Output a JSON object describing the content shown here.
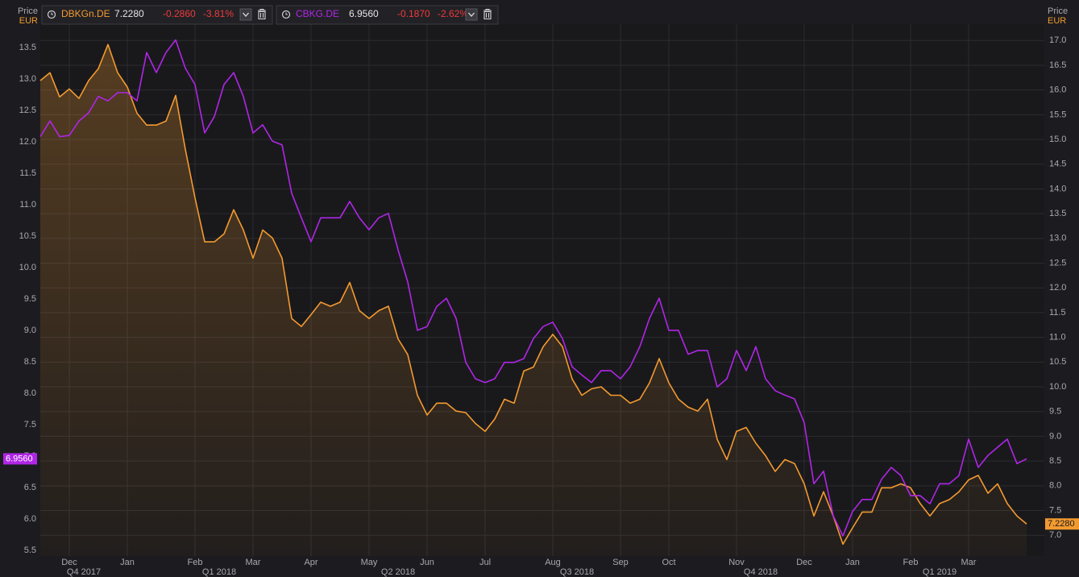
{
  "chart_data": {
    "type": "line",
    "axis_title_left": "Price",
    "axis_unit_left": "EUR",
    "axis_title_right": "Price",
    "axis_unit_right": "EUR",
    "categories": [
      null,
      null,
      null,
      "Dec",
      null,
      null,
      null,
      null,
      null,
      "Jan",
      null,
      null,
      null,
      null,
      null,
      null,
      "Feb",
      null,
      null,
      null,
      null,
      null,
      "Mar",
      null,
      null,
      null,
      null,
      null,
      "Apr",
      null,
      null,
      null,
      null,
      null,
      "May",
      null,
      null,
      null,
      null,
      null,
      "Jun",
      null,
      null,
      null,
      null,
      null,
      "Jul",
      null,
      null,
      null,
      null,
      null,
      null,
      "Aug",
      null,
      null,
      null,
      null,
      null,
      null,
      "Sep",
      null,
      null,
      null,
      null,
      "Oct",
      null,
      null,
      null,
      null,
      null,
      null,
      "Nov",
      null,
      null,
      null,
      null,
      null,
      null,
      "Dec",
      null,
      null,
      null,
      null,
      "Jan",
      null,
      null,
      null,
      null,
      null,
      "Feb",
      null,
      null,
      null,
      null,
      null,
      "Mar",
      null,
      null,
      null,
      null,
      null,
      null
    ],
    "x_groups": [
      {
        "label": "Q4 2017",
        "start": 0,
        "end": 9
      },
      {
        "label": "Q1 2018",
        "start": 9,
        "end": 28
      },
      {
        "label": "Q2 2018",
        "start": 28,
        "end": 46
      },
      {
        "label": "Q3 2018",
        "start": 46,
        "end": 65
      },
      {
        "label": "Q4 2018",
        "start": 65,
        "end": 84
      },
      {
        "label": "Q1 2019",
        "start": 84,
        "end": 102
      }
    ],
    "series": [
      {
        "name": "DBKGn.DE",
        "color": "#f39a2f",
        "axis": "y2",
        "area": true,
        "last": "7.2280",
        "change": "-0.2860",
        "change_pct": "-3.81%",
        "values": [
          16.19,
          16.35,
          15.86,
          16.02,
          15.83,
          16.19,
          16.43,
          16.92,
          16.35,
          16.06,
          15.53,
          15.29,
          15.29,
          15.37,
          15.89,
          14.8,
          13.82,
          12.93,
          12.93,
          13.09,
          13.58,
          13.17,
          12.6,
          13.17,
          13.01,
          12.6,
          11.38,
          11.22,
          11.46,
          11.71,
          11.63,
          11.71,
          12.11,
          11.54,
          11.38,
          11.54,
          11.63,
          10.97,
          10.65,
          9.83,
          9.43,
          9.67,
          9.67,
          9.51,
          9.48,
          9.26,
          9.1,
          9.35,
          9.75,
          9.67,
          10.32,
          10.4,
          10.81,
          11.06,
          10.81,
          10.16,
          9.83,
          9.96,
          10.0,
          9.83,
          9.83,
          9.67,
          9.75,
          10.08,
          10.57,
          10.08,
          9.75,
          9.59,
          9.51,
          9.75,
          8.94,
          8.53,
          9.1,
          9.18,
          8.86,
          8.61,
          8.29,
          8.53,
          8.45,
          8.04,
          7.39,
          7.88,
          7.39,
          6.82,
          7.15,
          7.47,
          7.47,
          7.96,
          7.96,
          8.04,
          7.96,
          7.64,
          7.39,
          7.64,
          7.72,
          7.88,
          8.12,
          8.21,
          7.85,
          8.04,
          7.64,
          7.39,
          7.228
        ]
      },
      {
        "name": "CBKG.DE",
        "color": "#b026e6",
        "axis": "y",
        "last": "6.9560",
        "change": "-0.1870",
        "change_pct": "-2.62%",
        "values": [
          12.08,
          12.33,
          12.08,
          12.1,
          12.33,
          12.46,
          12.72,
          12.65,
          12.78,
          12.78,
          12.65,
          13.42,
          13.1,
          13.42,
          13.62,
          13.17,
          12.91,
          12.14,
          12.4,
          12.91,
          13.1,
          12.72,
          12.14,
          12.27,
          12.01,
          11.95,
          11.18,
          10.79,
          10.41,
          10.79,
          10.79,
          10.79,
          11.05,
          10.79,
          10.6,
          10.79,
          10.86,
          10.28,
          9.77,
          9.0,
          9.06,
          9.38,
          9.51,
          9.19,
          8.49,
          8.23,
          8.17,
          8.23,
          8.49,
          8.49,
          8.55,
          8.87,
          9.06,
          9.13,
          8.87,
          8.42,
          8.29,
          8.17,
          8.36,
          8.36,
          8.23,
          8.42,
          8.74,
          9.19,
          9.51,
          9.0,
          9.0,
          8.62,
          8.68,
          8.68,
          8.1,
          8.23,
          8.68,
          8.36,
          8.74,
          8.23,
          8.04,
          7.97,
          7.91,
          7.53,
          6.56,
          6.76,
          6.05,
          5.73,
          6.12,
          6.31,
          6.31,
          6.63,
          6.82,
          6.69,
          6.37,
          6.37,
          6.24,
          6.56,
          6.56,
          6.69,
          7.27,
          6.82,
          7.01,
          7.14,
          7.27,
          6.88,
          6.956
        ]
      }
    ],
    "ylim": [
      5.41,
      13.87
    ],
    "yticks": [
      5.5,
      {
        "value": 6,
        "label": "6.0"
      },
      6.5,
      {
        "value": 7,
        "label": "7.0"
      },
      7.5,
      {
        "value": 8,
        "label": "8.0"
      },
      8.5,
      {
        "value": 9,
        "label": "9.0"
      },
      9.5,
      {
        "value": 10,
        "label": "10.0"
      },
      10.5,
      {
        "value": 11,
        "label": "11.0"
      },
      11.5,
      {
        "value": 12,
        "label": "12.0"
      },
      12.5,
      {
        "value": 13,
        "label": "13.0"
      },
      13.5
    ],
    "y2lim": [
      6.58,
      17.33
    ],
    "y2ticks": [
      {
        "value": 7,
        "label": "7.0"
      },
      7.5,
      {
        "value": 8,
        "label": "8.0"
      },
      8.5,
      {
        "value": 9,
        "label": "9.0"
      },
      9.5,
      {
        "value": 10,
        "label": "10.0"
      },
      10.5,
      {
        "value": 11,
        "label": "11.0"
      },
      11.5,
      {
        "value": 12,
        "label": "12.0"
      },
      12.5,
      {
        "value": 13,
        "label": "13.0"
      },
      13.5,
      {
        "value": 14,
        "label": "14.0"
      },
      14.5,
      {
        "value": 15,
        "label": "15.0"
      },
      15.5,
      {
        "value": 16,
        "label": "16.0"
      },
      16.5,
      {
        "value": 17,
        "label": "17.0"
      }
    ],
    "grid": true
  }
}
